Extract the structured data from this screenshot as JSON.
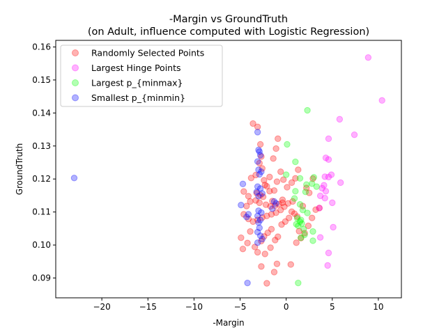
{
  "chart_data": {
    "type": "scatter",
    "title": "-Margin vs GroundTruth",
    "subtitle": "(on Adult, influence computed with Logistic Regression)",
    "xlabel": "-Margin",
    "ylabel": "GroundTruth",
    "xlim": [
      -25,
      12.5
    ],
    "ylim": [
      0.084,
      0.162
    ],
    "xticks": [
      -20,
      -15,
      -10,
      -5,
      0,
      5,
      10
    ],
    "xtick_labels": [
      "−20",
      "−15",
      "−10",
      "−5",
      "0",
      "5",
      "10"
    ],
    "yticks": [
      0.09,
      0.1,
      0.11,
      0.12,
      0.13,
      0.14,
      0.15,
      0.16
    ],
    "ytick_labels": [
      "0.09",
      "0.10",
      "0.11",
      "0.12",
      "0.13",
      "0.14",
      "0.15",
      "0.16"
    ],
    "grid": false,
    "legend_position": "top-left",
    "series": [
      {
        "name": "Randomly Selected Points",
        "color": "#ff0000",
        "alpha": 0.3,
        "points": [
          [
            -3.6,
            0.1368
          ],
          [
            -3.1,
            0.1358
          ],
          [
            -2.8,
            0.1305
          ],
          [
            -2.7,
            0.1268
          ],
          [
            -2.9,
            0.1248
          ],
          [
            -2.6,
            0.1232
          ],
          [
            -3.3,
            0.1212
          ],
          [
            -2.4,
            0.1196
          ],
          [
            -2.1,
            0.1178
          ],
          [
            -1.8,
            0.1163
          ],
          [
            -3.2,
            0.1157
          ],
          [
            -2.8,
            0.1151
          ],
          [
            -2.5,
            0.1146
          ],
          [
            -3.3,
            0.1135
          ],
          [
            -2.9,
            0.1128
          ],
          [
            -2.2,
            0.1122
          ],
          [
            -1.7,
            0.1117
          ],
          [
            -1.2,
            0.1119
          ],
          [
            -0.8,
            0.1124
          ],
          [
            -0.4,
            0.1128
          ],
          [
            -0.2,
            0.1116
          ],
          [
            -0.6,
            0.1106
          ],
          [
            -1.1,
            0.1098
          ],
          [
            -1.6,
            0.1093
          ],
          [
            -2.1,
            0.1088
          ],
          [
            -2.6,
            0.1083
          ],
          [
            -3.1,
            0.1076
          ],
          [
            -3.6,
            0.1071
          ],
          [
            -4.1,
            0.1079
          ],
          [
            -4.6,
            0.1093
          ],
          [
            -4.3,
            0.1118
          ],
          [
            -4.6,
            0.1162
          ],
          [
            -4.1,
            0.1148
          ],
          [
            -3.9,
            0.1132
          ],
          [
            -4.9,
            0.1022
          ],
          [
            -4.7,
            0.0988
          ],
          [
            -4.2,
            0.1006
          ],
          [
            -3.4,
            0.0994
          ],
          [
            -3.1,
            0.0978
          ],
          [
            -2.7,
            0.1012
          ],
          [
            -2.4,
            0.1026
          ],
          [
            -2.0,
            0.1037
          ],
          [
            -1.6,
            0.1048
          ],
          [
            -1.2,
            0.1015
          ],
          [
            -0.9,
            0.1025
          ],
          [
            -0.5,
            0.1062
          ],
          [
            -0.1,
            0.1071
          ],
          [
            0.3,
            0.1082
          ],
          [
            0.6,
            0.1101
          ],
          [
            0.9,
            0.1095
          ],
          [
            1.2,
            0.1086
          ],
          [
            1.4,
            0.1042
          ],
          [
            1.1,
            0.1007
          ],
          [
            1.6,
            0.1021
          ],
          [
            2.0,
            0.1036
          ],
          [
            2.4,
            0.1058
          ],
          [
            2.8,
            0.1082
          ],
          [
            3.2,
            0.1107
          ],
          [
            3.6,
            0.1112
          ],
          [
            2.9,
            0.1201
          ],
          [
            2.5,
            0.1158
          ],
          [
            2.2,
            0.1173
          ],
          [
            1.3,
            0.1228
          ],
          [
            1.0,
            0.1202
          ],
          [
            0.6,
            0.1189
          ],
          [
            0.1,
            0.1175
          ],
          [
            -0.3,
            0.1198
          ],
          [
            -0.6,
            0.1222
          ],
          [
            -1.0,
            0.1192
          ],
          [
            -1.3,
            0.1165
          ],
          [
            -1.1,
            0.1292
          ],
          [
            -0.9,
            0.1322
          ],
          [
            -1.4,
            0.1262
          ],
          [
            -1.8,
            0.1206
          ],
          [
            -2.3,
            0.1182
          ],
          [
            -2.7,
            0.0935
          ],
          [
            -1.3,
            0.0918
          ],
          [
            -1.0,
            0.0943
          ],
          [
            0.5,
            0.0941
          ],
          [
            -2.1,
            0.0884
          ],
          [
            -1.7,
            0.0992
          ],
          [
            -2.3,
            0.0973
          ],
          [
            -0.4,
            0.1137
          ],
          [
            0.2,
            0.1126
          ],
          [
            1.8,
            0.1118
          ],
          [
            -1.5,
            0.1133
          ],
          [
            -3.8,
            0.1203
          ],
          [
            -3.9,
            0.1041
          ],
          [
            0.7,
            0.1132
          ]
        ]
      },
      {
        "name": "Largest Hinge Points",
        "color": "#ff00ff",
        "alpha": 0.3,
        "points": [
          [
            8.9,
            0.1568
          ],
          [
            10.4,
            0.1438
          ],
          [
            5.8,
            0.1381
          ],
          [
            7.4,
            0.1334
          ],
          [
            4.6,
            0.1322
          ],
          [
            4.3,
            0.1264
          ],
          [
            4.6,
            0.1259
          ],
          [
            4.9,
            0.1213
          ],
          [
            4.2,
            0.1207
          ],
          [
            4.6,
            0.1206
          ],
          [
            5.9,
            0.1189
          ],
          [
            4.1,
            0.1181
          ],
          [
            3.9,
            0.1172
          ],
          [
            4.3,
            0.1163
          ],
          [
            3.7,
            0.1149
          ],
          [
            4.2,
            0.1142
          ],
          [
            3.6,
            0.1112
          ],
          [
            5.1,
            0.1054
          ],
          [
            3.7,
            0.1023
          ],
          [
            4.6,
            0.0976
          ],
          [
            4.5,
            0.0938
          ],
          [
            5.0,
            0.1128
          ]
        ]
      },
      {
        "name": "Largest p_{minmax}",
        "color": "#00ff00",
        "alpha": 0.3,
        "points": [
          [
            2.3,
            0.1408
          ],
          [
            0.1,
            0.1305
          ],
          [
            1.0,
            0.1252
          ],
          [
            0.0,
            0.1213
          ],
          [
            1.5,
            0.1202
          ],
          [
            3.0,
            0.1205
          ],
          [
            2.8,
            0.1186
          ],
          [
            2.2,
            0.1183
          ],
          [
            3.3,
            0.1177
          ],
          [
            1.0,
            0.1163
          ],
          [
            2.1,
            0.1161
          ],
          [
            0.9,
            0.1141
          ],
          [
            1.5,
            0.1123
          ],
          [
            1.8,
            0.1106
          ],
          [
            2.3,
            0.1097
          ],
          [
            1.2,
            0.1081
          ],
          [
            1.5,
            0.1071
          ],
          [
            1.7,
            0.1065
          ],
          [
            1.1,
            0.1063
          ],
          [
            1.3,
            0.1058
          ],
          [
            1.9,
            0.1048
          ],
          [
            2.9,
            0.1041
          ],
          [
            2.0,
            0.1031
          ],
          [
            1.6,
            0.1022
          ],
          [
            2.9,
            0.1013
          ],
          [
            1.3,
            0.0885
          ],
          [
            1.6,
            0.1076
          ]
        ]
      },
      {
        "name": "Smallest p_{minmin}",
        "color": "#0000ff",
        "alpha": 0.3,
        "points": [
          [
            -23.0,
            0.1203
          ],
          [
            -3.1,
            0.1342
          ],
          [
            -3.0,
            0.1288
          ],
          [
            -2.9,
            0.1283
          ],
          [
            -2.8,
            0.1272
          ],
          [
            -3.1,
            0.1253
          ],
          [
            -3.0,
            0.1228
          ],
          [
            -2.7,
            0.1222
          ],
          [
            -2.9,
            0.1214
          ],
          [
            -4.7,
            0.1185
          ],
          [
            -3.1,
            0.1177
          ],
          [
            -2.8,
            0.1171
          ],
          [
            -3.2,
            0.1161
          ],
          [
            -2.6,
            0.1156
          ],
          [
            -3.0,
            0.1148
          ],
          [
            -1.3,
            0.1132
          ],
          [
            -1.1,
            0.1126
          ],
          [
            -4.9,
            0.1121
          ],
          [
            -3.0,
            0.1104
          ],
          [
            -2.7,
            0.1098
          ],
          [
            -4.1,
            0.1093
          ],
          [
            -3.1,
            0.1088
          ],
          [
            -2.8,
            0.1076
          ],
          [
            -3.0,
            0.1068
          ],
          [
            -2.9,
            0.1052
          ],
          [
            -3.1,
            0.1039
          ],
          [
            -2.8,
            0.1028
          ],
          [
            -2.6,
            0.1018
          ],
          [
            -3.1,
            0.1007
          ],
          [
            -4.2,
            0.0885
          ],
          [
            -1.5,
            0.111
          ],
          [
            -4.3,
            0.1085
          ]
        ]
      }
    ]
  }
}
